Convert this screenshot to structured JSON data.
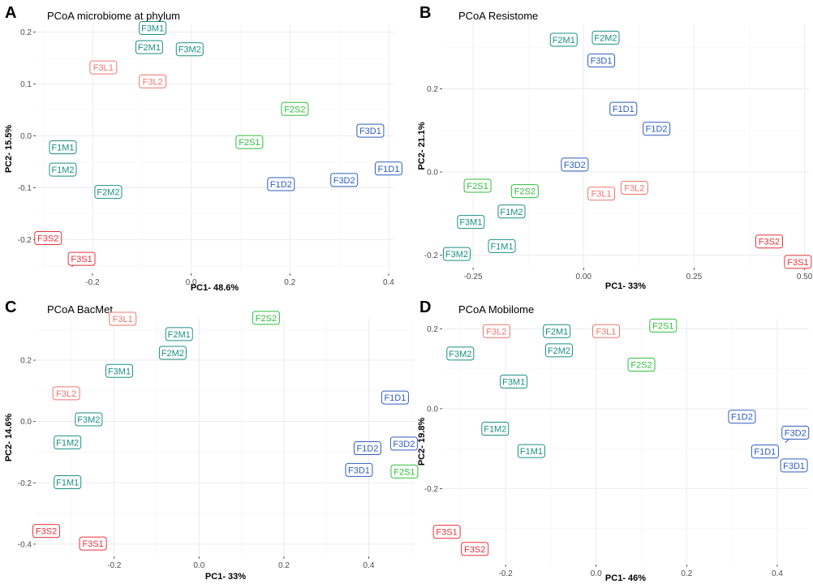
{
  "chart_data": [
    {
      "type": "scatter",
      "panel_letter": "A",
      "title": "PCoA microbiome at phylum",
      "xlabel": "PC1- 48.6%",
      "ylabel": "PC2- 15.5%",
      "xlim": [
        -0.315,
        0.41
      ],
      "ylim": [
        -0.265,
        0.215
      ],
      "xticks": [
        -0.2,
        0.0,
        0.2,
        0.4
      ],
      "xtick_labels": [
        "-0.2",
        "0.0",
        "0.2",
        "0.4"
      ],
      "yticks": [
        -0.2,
        -0.1,
        0.0,
        0.1,
        0.2
      ],
      "ytick_labels": [
        "-0.2",
        "-0.1",
        "0.0",
        "0.1",
        "0.2"
      ],
      "points": [
        {
          "label": "F3M1",
          "x": -0.078,
          "y": 0.208,
          "group": "M"
        },
        {
          "label": "F2M1",
          "x": -0.085,
          "y": 0.171,
          "group": "M"
        },
        {
          "label": "F3M2",
          "x": -0.003,
          "y": 0.167,
          "group": "M"
        },
        {
          "label": "F3L1",
          "x": -0.178,
          "y": 0.132,
          "group": "L"
        },
        {
          "label": "F3L2",
          "x": -0.078,
          "y": 0.105,
          "group": "L"
        },
        {
          "label": "F2S2",
          "x": 0.21,
          "y": 0.052,
          "group": "S"
        },
        {
          "label": "F3D1",
          "x": 0.363,
          "y": 0.01,
          "group": "D"
        },
        {
          "label": "F2S1",
          "x": 0.118,
          "y": -0.012,
          "group": "S"
        },
        {
          "label": "F1M1",
          "x": -0.26,
          "y": -0.022,
          "group": "M"
        },
        {
          "label": "F1D1",
          "x": 0.4,
          "y": -0.063,
          "group": "D"
        },
        {
          "label": "F1M2",
          "x": -0.26,
          "y": -0.065,
          "group": "M"
        },
        {
          "label": "F3D2",
          "x": 0.31,
          "y": -0.085,
          "group": "D"
        },
        {
          "label": "F1D2",
          "x": 0.182,
          "y": -0.093,
          "group": "D"
        },
        {
          "label": "F2M2",
          "x": -0.168,
          "y": -0.108,
          "group": "M"
        },
        {
          "label": "F3S2",
          "x": -0.29,
          "y": -0.197,
          "group": "S3"
        },
        {
          "label": "F3S1",
          "x": -0.222,
          "y": -0.237,
          "group": "S3",
          "leader_to": {
            "x": -0.242,
            "y": -0.252
          }
        }
      ]
    },
    {
      "type": "scatter",
      "panel_letter": "B",
      "title": "PCoA Resistome",
      "xlabel": "PC1- 33%",
      "ylabel": "PC2- 21.1%",
      "xlim": [
        -0.32,
        0.51
      ],
      "ylim": [
        -0.23,
        0.355
      ],
      "xticks": [
        -0.25,
        0.0,
        0.25,
        0.5
      ],
      "xtick_labels": [
        "-0.25",
        "0.00",
        "0.25",
        "0.50"
      ],
      "yticks": [
        -0.2,
        0.0,
        0.2
      ],
      "ytick_labels": [
        "-0.2",
        "0.0",
        "0.2"
      ],
      "points": [
        {
          "label": "F2M1",
          "x": -0.045,
          "y": 0.318,
          "group": "M"
        },
        {
          "label": "F2M2",
          "x": 0.05,
          "y": 0.323,
          "group": "M"
        },
        {
          "label": "F3D1",
          "x": 0.04,
          "y": 0.268,
          "group": "D"
        },
        {
          "label": "F1D1",
          "x": 0.09,
          "y": 0.152,
          "group": "D"
        },
        {
          "label": "F1D2",
          "x": 0.165,
          "y": 0.104,
          "group": "D"
        },
        {
          "label": "F3D2",
          "x": -0.02,
          "y": 0.018,
          "group": "D"
        },
        {
          "label": "F2S1",
          "x": -0.24,
          "y": -0.033,
          "group": "S"
        },
        {
          "label": "F3L2",
          "x": 0.115,
          "y": -0.038,
          "group": "L"
        },
        {
          "label": "F2S2",
          "x": -0.133,
          "y": -0.046,
          "group": "S"
        },
        {
          "label": "F3L1",
          "x": 0.04,
          "y": -0.052,
          "group": "L"
        },
        {
          "label": "F1M2",
          "x": -0.163,
          "y": -0.095,
          "group": "M"
        },
        {
          "label": "F3M1",
          "x": -0.255,
          "y": -0.12,
          "group": "M"
        },
        {
          "label": "F3S2",
          "x": 0.42,
          "y": -0.167,
          "group": "S3"
        },
        {
          "label": "F1M1",
          "x": -0.185,
          "y": -0.178,
          "group": "M"
        },
        {
          "label": "F3M2",
          "x": -0.287,
          "y": -0.197,
          "group": "M"
        },
        {
          "label": "F3S1",
          "x": 0.485,
          "y": -0.216,
          "group": "S3"
        }
      ]
    },
    {
      "type": "scatter",
      "panel_letter": "C",
      "title": "PCoA BacMet",
      "xlabel": "PC1- 33%",
      "ylabel": "PC2- 14.6%",
      "xlim": [
        -0.385,
        0.51
      ],
      "ylim": [
        -0.44,
        0.335
      ],
      "xticks": [
        -0.2,
        0.0,
        0.2,
        0.4
      ],
      "xtick_labels": [
        "-0.2",
        "0.0",
        "0.2",
        "0.4"
      ],
      "yticks": [
        -0.4,
        -0.2,
        0.0,
        0.2
      ],
      "ytick_labels": [
        "-0.4",
        "-0.2",
        "0.0",
        "0.2"
      ],
      "points": [
        {
          "label": "F3L1",
          "x": -0.18,
          "y": 0.335,
          "group": "L"
        },
        {
          "label": "F2S2",
          "x": 0.158,
          "y": 0.338,
          "group": "S"
        },
        {
          "label": "F2M1",
          "x": -0.047,
          "y": 0.285,
          "group": "M"
        },
        {
          "label": "F2M2",
          "x": -0.062,
          "y": 0.224,
          "group": "M"
        },
        {
          "label": "F3M1",
          "x": -0.188,
          "y": 0.165,
          "group": "M"
        },
        {
          "label": "F3L2",
          "x": -0.313,
          "y": 0.092,
          "group": "L"
        },
        {
          "label": "F1D1",
          "x": 0.462,
          "y": 0.078,
          "group": "D"
        },
        {
          "label": "F3M2",
          "x": -0.26,
          "y": 0.007,
          "group": "M"
        },
        {
          "label": "F1M2",
          "x": -0.31,
          "y": -0.068,
          "group": "M"
        },
        {
          "label": "F3D2",
          "x": 0.483,
          "y": -0.072,
          "group": "D"
        },
        {
          "label": "F1D2",
          "x": 0.397,
          "y": -0.087,
          "group": "D"
        },
        {
          "label": "F3D1",
          "x": 0.377,
          "y": -0.158,
          "group": "D"
        },
        {
          "label": "F2S1",
          "x": 0.484,
          "y": -0.163,
          "group": "S"
        },
        {
          "label": "F1M1",
          "x": -0.31,
          "y": -0.198,
          "group": "M"
        },
        {
          "label": "F3S2",
          "x": -0.36,
          "y": -0.357,
          "group": "S3"
        },
        {
          "label": "F3S1",
          "x": -0.25,
          "y": -0.398,
          "group": "S3"
        }
      ]
    },
    {
      "type": "scatter",
      "panel_letter": "D",
      "title": "PCoA Mobilome",
      "xlabel": "PC1- 46%",
      "ylabel": "PC2- 19.8%",
      "xlim": [
        -0.34,
        0.47
      ],
      "ylim": [
        -0.39,
        0.225
      ],
      "xticks": [
        -0.2,
        0.0,
        0.2,
        0.4
      ],
      "xtick_labels": [
        "-0.2",
        "0.0",
        "0.2",
        "0.4"
      ],
      "yticks": [
        -0.2,
        0.0,
        0.2
      ],
      "ytick_labels": [
        "-0.2",
        "0.0",
        "0.2"
      ],
      "points": [
        {
          "label": "F2S1",
          "x": 0.148,
          "y": 0.208,
          "group": "S"
        },
        {
          "label": "F3L2",
          "x": -0.22,
          "y": 0.194,
          "group": "L"
        },
        {
          "label": "F2M1",
          "x": -0.087,
          "y": 0.194,
          "group": "M"
        },
        {
          "label": "F3L1",
          "x": 0.022,
          "y": 0.194,
          "group": "L"
        },
        {
          "label": "F2M2",
          "x": -0.082,
          "y": 0.146,
          "group": "M"
        },
        {
          "label": "F3M2",
          "x": -0.3,
          "y": 0.138,
          "group": "M"
        },
        {
          "label": "F2S2",
          "x": 0.1,
          "y": 0.11,
          "group": "S"
        },
        {
          "label": "F3M1",
          "x": -0.182,
          "y": 0.068,
          "group": "M"
        },
        {
          "label": "F1D2",
          "x": 0.322,
          "y": -0.02,
          "group": "D"
        },
        {
          "label": "F3D2",
          "x": 0.44,
          "y": -0.06,
          "group": "D",
          "leader_to": {
            "x": 0.418,
            "y": -0.085
          }
        },
        {
          "label": "F1M2",
          "x": -0.223,
          "y": -0.05,
          "group": "M"
        },
        {
          "label": "F1M1",
          "x": -0.143,
          "y": -0.106,
          "group": "M"
        },
        {
          "label": "F1D1",
          "x": 0.373,
          "y": -0.107,
          "group": "D"
        },
        {
          "label": "F3D1",
          "x": 0.437,
          "y": -0.142,
          "group": "D"
        },
        {
          "label": "F3S1",
          "x": -0.33,
          "y": -0.308,
          "group": "S3"
        },
        {
          "label": "F3S2",
          "x": -0.268,
          "y": -0.351,
          "group": "S3"
        }
      ]
    }
  ],
  "colors": {
    "M": "#1a8f85",
    "S": "#2fbf3a",
    "D": "#2e5cbf",
    "L": "#f0756d",
    "S3": "#e8333a",
    "grid": "#ebebeb",
    "axis_text": "#4d4d4d"
  }
}
